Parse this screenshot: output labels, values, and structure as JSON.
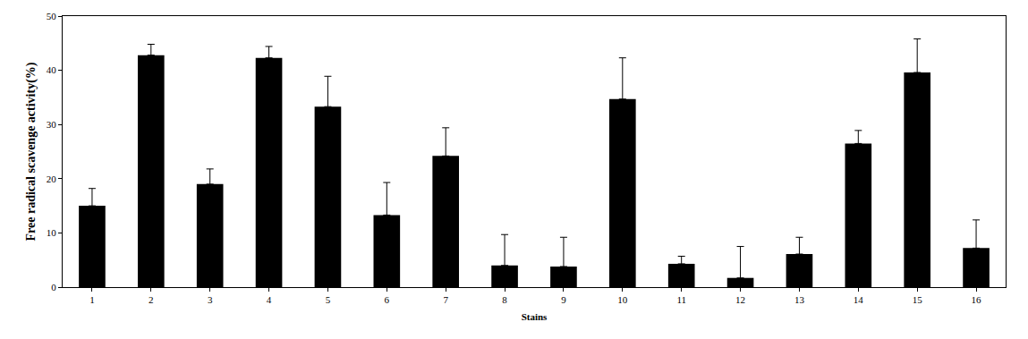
{
  "chart_data": {
    "type": "bar",
    "x_label": "Stains",
    "y_label": "Free radical scavenge activity(%)",
    "categories": [
      "1",
      "2",
      "3",
      "4",
      "5",
      "6",
      "7",
      "8",
      "9",
      "10",
      "11",
      "12",
      "13",
      "14",
      "15",
      "16"
    ],
    "values": [
      15,
      42.8,
      19,
      42.3,
      33.3,
      13.3,
      24.2,
      4,
      3.8,
      34.7,
      4.3,
      1.7,
      6.1,
      26.5,
      39.6,
      7.2
    ],
    "errors": [
      3.2,
      2,
      2.8,
      2.1,
      5.6,
      6,
      5.2,
      5.7,
      5.4,
      7.6,
      1.4,
      5.8,
      3.1,
      2.4,
      6.2,
      5.2
    ],
    "color": "#000000",
    "ylim": [
      0,
      50
    ],
    "yticks": [
      0,
      10,
      20,
      30,
      40,
      50
    ],
    "grid": false
  }
}
